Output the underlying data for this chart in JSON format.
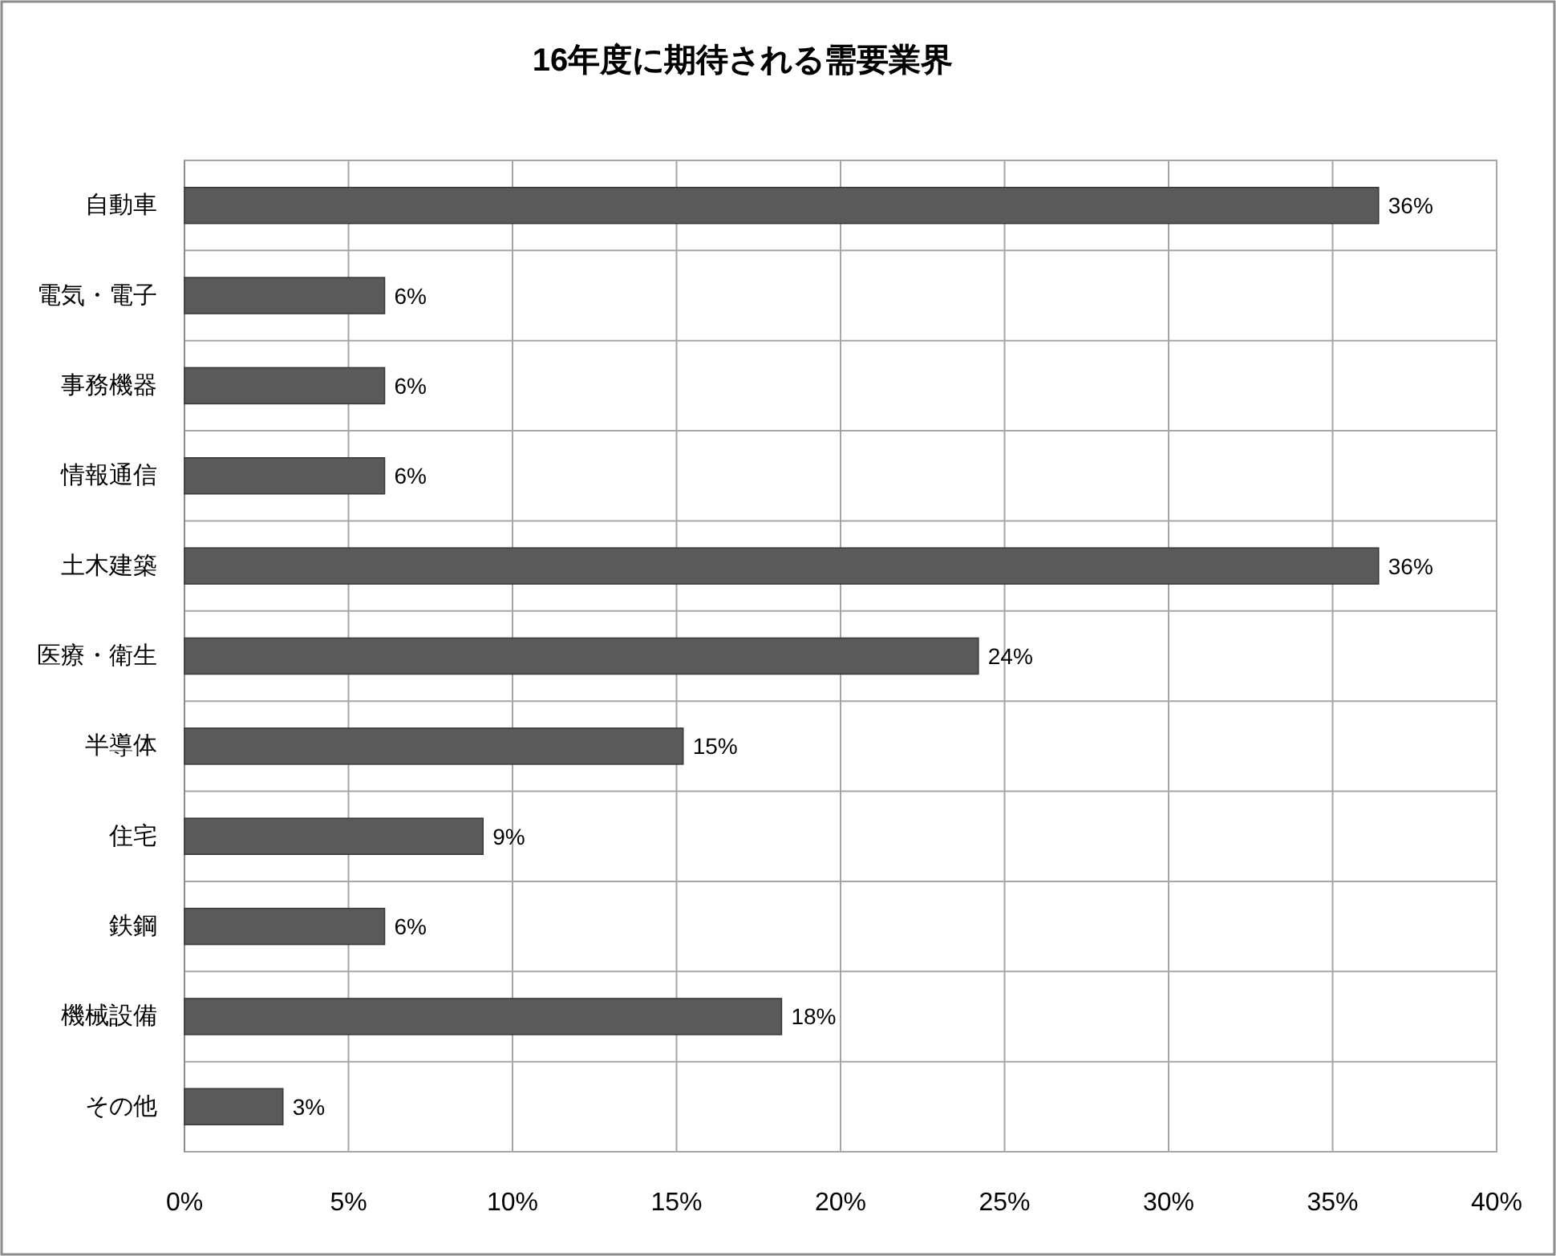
{
  "chart_data": {
    "type": "bar",
    "orientation": "horizontal",
    "title": "16年度に期待される需要業界",
    "categories": [
      "自動車",
      "電気・電子",
      "事務機器",
      "情報通信",
      "土木建築",
      "医療・衛生",
      "半導体",
      "住宅",
      "鉄鋼",
      "機械設備",
      "その他"
    ],
    "values": [
      36.4,
      6.1,
      6.1,
      6.1,
      36.4,
      24.2,
      15.2,
      9.1,
      6.1,
      18.2,
      3.0
    ],
    "value_labels": [
      "36%",
      "6%",
      "6%",
      "6%",
      "36%",
      "24%",
      "15%",
      "9%",
      "6%",
      "18%",
      "3%"
    ],
    "color": "#5a5a5a",
    "xlim": [
      0,
      40
    ],
    "xticks": [
      {
        "value": 0,
        "label": "0%"
      },
      {
        "value": 5,
        "label": "5%"
      },
      {
        "value": 10,
        "label": "10%"
      },
      {
        "value": 15,
        "label": "15%"
      },
      {
        "value": 20,
        "label": "20%"
      },
      {
        "value": 25,
        "label": "25%"
      },
      {
        "value": 30,
        "label": "30%"
      },
      {
        "value": 35,
        "label": "35%"
      },
      {
        "value": 40,
        "label": "40%"
      }
    ],
    "grid": true
  }
}
